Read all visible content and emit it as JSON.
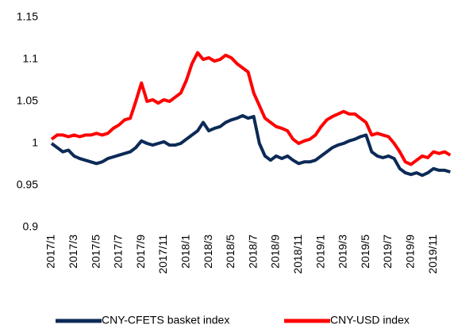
{
  "chart_data": {
    "type": "line",
    "categories": [
      "2017/1",
      null,
      null,
      null,
      "2017/3",
      null,
      null,
      null,
      "2017/5",
      null,
      null,
      null,
      "2017/7",
      null,
      null,
      null,
      "2017/9",
      null,
      null,
      null,
      "2017/11",
      null,
      null,
      null,
      "2018/1",
      null,
      null,
      null,
      "2018/3",
      null,
      null,
      null,
      "2018/5",
      null,
      null,
      null,
      "2018/7",
      null,
      null,
      null,
      "2018/9",
      null,
      null,
      null,
      "2018/11",
      null,
      null,
      null,
      "2019/1",
      null,
      null,
      null,
      "2019/3",
      null,
      null,
      null,
      "2019/5",
      null,
      null,
      null,
      "2019/7",
      null,
      null,
      null,
      "2019/9",
      null,
      null,
      null,
      "2019/11",
      null,
      null,
      null
    ],
    "series": [
      {
        "name": "CNY-CFETS basket index",
        "color": "#0c2a56",
        "values": [
          1.0,
          0.995,
          0.99,
          0.992,
          0.985,
          0.982,
          0.98,
          0.978,
          0.976,
          0.978,
          0.982,
          0.984,
          0.986,
          0.988,
          0.99,
          0.995,
          1.003,
          1.0,
          0.998,
          1.0,
          1.002,
          0.998,
          0.998,
          1.0,
          1.005,
          1.01,
          1.015,
          1.025,
          1.015,
          1.018,
          1.02,
          1.025,
          1.028,
          1.03,
          1.033,
          1.03,
          1.032,
          1.0,
          0.985,
          0.98,
          0.985,
          0.982,
          0.985,
          0.98,
          0.976,
          0.978,
          0.978,
          0.98,
          0.985,
          0.99,
          0.995,
          0.998,
          1.0,
          1.003,
          1.005,
          1.008,
          1.01,
          0.99,
          0.985,
          0.983,
          0.985,
          0.982,
          0.97,
          0.965,
          0.963,
          0.965,
          0.962,
          0.965,
          0.97,
          0.968,
          0.968,
          0.966
        ]
      },
      {
        "name": "CNY-USD index",
        "color": "#ff0000",
        "values": [
          1.005,
          1.01,
          1.01,
          1.008,
          1.01,
          1.008,
          1.01,
          1.01,
          1.012,
          1.01,
          1.012,
          1.018,
          1.022,
          1.028,
          1.03,
          1.05,
          1.072,
          1.05,
          1.052,
          1.048,
          1.052,
          1.05,
          1.055,
          1.06,
          1.075,
          1.095,
          1.108,
          1.1,
          1.102,
          1.098,
          1.1,
          1.105,
          1.102,
          1.095,
          1.09,
          1.085,
          1.06,
          1.045,
          1.03,
          1.025,
          1.02,
          1.018,
          1.015,
          1.005,
          1.0,
          1.003,
          1.005,
          1.01,
          1.02,
          1.028,
          1.032,
          1.035,
          1.038,
          1.035,
          1.035,
          1.03,
          1.025,
          1.01,
          1.012,
          1.01,
          1.008,
          1.0,
          0.99,
          0.978,
          0.975,
          0.98,
          0.985,
          0.983,
          0.99,
          0.988,
          0.99,
          0.986
        ]
      }
    ],
    "ylim": [
      0.9,
      1.15
    ],
    "yticks": [
      0.9,
      0.95,
      1,
      1.05,
      1.1,
      1.15
    ],
    "legend": "bottom"
  }
}
